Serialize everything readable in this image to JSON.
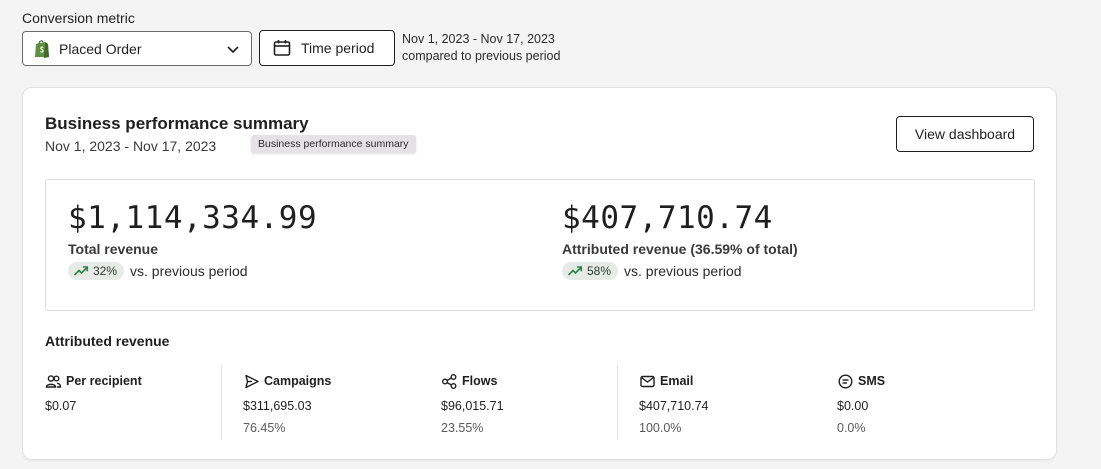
{
  "filters": {
    "label": "Conversion metric",
    "metric_value": "Placed Order",
    "time_button": "Time period",
    "date_range": "Nov 1, 2023 - Nov 17, 2023",
    "comparison": "compared to previous period"
  },
  "card": {
    "title": "Business performance summary",
    "subtitle": "Nov 1, 2023 - Nov 17, 2023",
    "tooltip": "Business performance summary",
    "view_button": "View dashboard"
  },
  "stats": {
    "total": {
      "value": "$1,114,334.99",
      "label": "Total revenue",
      "change": "32%",
      "vs": "vs. previous period"
    },
    "attributed": {
      "value": "$407,710.74",
      "label": "Attributed revenue (36.59% of total)",
      "change": "58%",
      "vs": "vs. previous period"
    }
  },
  "attributed": {
    "title": "Attributed revenue",
    "columns": [
      {
        "title": "Per recipient",
        "icon": "people-icon",
        "value": "$0.07",
        "pct": ""
      },
      {
        "title": "Campaigns",
        "icon": "send-icon",
        "value": "$311,695.03",
        "pct": "76.45%"
      },
      {
        "title": "Flows",
        "icon": "flows-icon",
        "value": "$96,015.71",
        "pct": "23.55%"
      },
      {
        "title": "Email",
        "icon": "mail-icon",
        "value": "$407,710.74",
        "pct": "100.0%"
      },
      {
        "title": "SMS",
        "icon": "sms-icon",
        "value": "$0.00",
        "pct": "0.0%"
      }
    ]
  },
  "colors": {
    "positive_badge": "#e6ebe7",
    "trend_green": "#2e7d4f",
    "shopify_green": "#5e8e3e"
  }
}
